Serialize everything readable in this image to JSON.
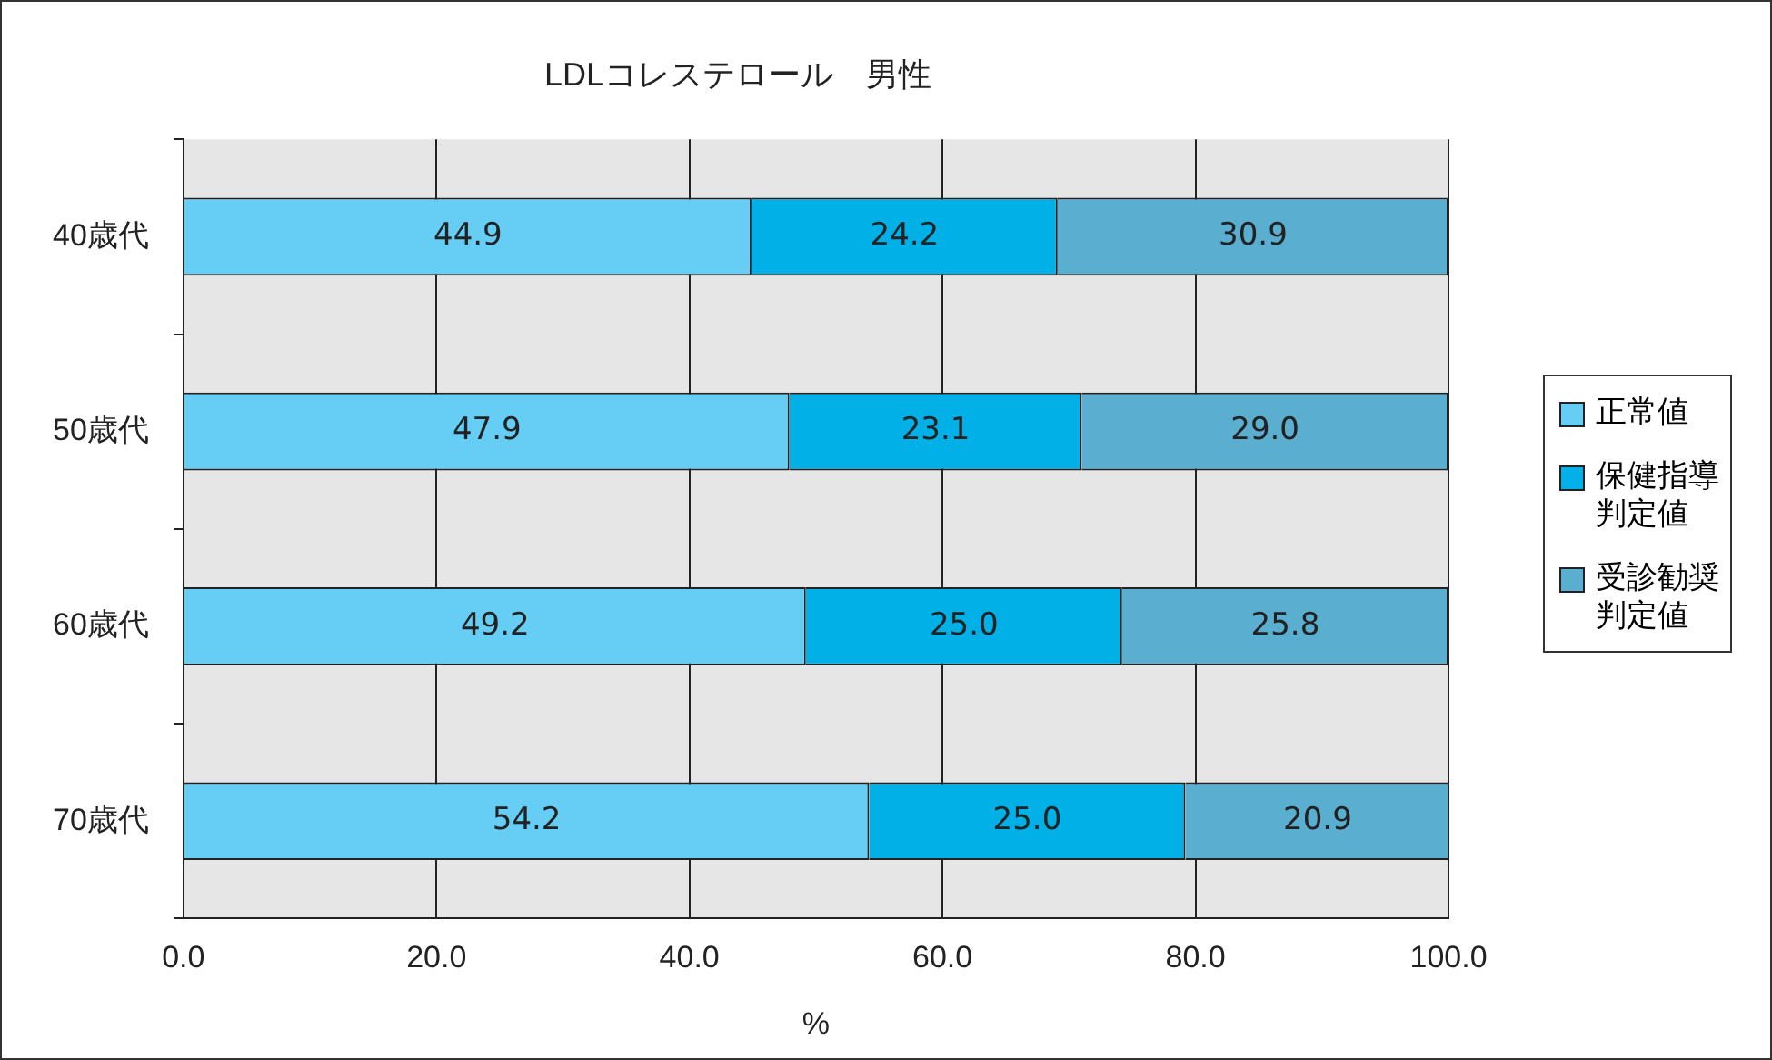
{
  "chart_data": {
    "type": "bar",
    "orientation": "horizontal",
    "stacked": true,
    "title": "LDLコレステロール　男性",
    "xlabel": "%",
    "categories": [
      "40歳代",
      "50歳代",
      "60歳代",
      "70歳代"
    ],
    "series": [
      {
        "name": "正常値",
        "color": "#66cdf4",
        "values": [
          44.9,
          47.9,
          49.2,
          54.2
        ],
        "value_labels": [
          "44.9",
          "47.9",
          "49.2",
          "54.2"
        ]
      },
      {
        "name": "保健指導判定値",
        "color": "#00b0e6",
        "values": [
          24.2,
          23.1,
          25.0,
          25.0
        ],
        "value_labels": [
          "24.2",
          "23.1",
          "25.0",
          "25.0"
        ]
      },
      {
        "name": "受診勧奨判定値",
        "color": "#5aaed0",
        "values": [
          30.9,
          29.0,
          25.8,
          20.9
        ],
        "value_labels": [
          "30.9",
          "29.0",
          "25.8",
          "20.9"
        ]
      }
    ],
    "xlim": [
      0,
      100
    ],
    "xticks": [
      {
        "value": 0,
        "label": "0.0"
      },
      {
        "value": 20,
        "label": "20.0"
      },
      {
        "value": 40,
        "label": "40.0"
      },
      {
        "value": 60,
        "label": "60.0"
      },
      {
        "value": 80,
        "label": "80.0"
      },
      {
        "value": 100,
        "label": "100.0"
      }
    ],
    "grid": "x",
    "legend": "right"
  }
}
